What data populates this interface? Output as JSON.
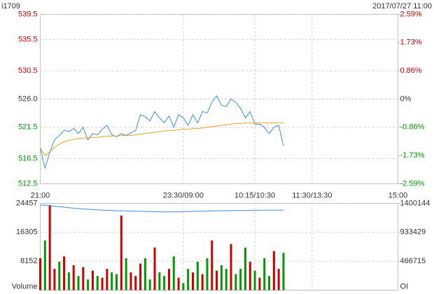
{
  "header": {
    "symbol": "i1709",
    "datetime": "2017/07/27 11:00"
  },
  "chart_data": [
    {
      "type": "line",
      "x": [
        0,
        5,
        10,
        15,
        20,
        25,
        30,
        35,
        40,
        45,
        50,
        55,
        60,
        65,
        70,
        75,
        80,
        85,
        90,
        95,
        100,
        105,
        110,
        115,
        120,
        125,
        130,
        135,
        140,
        145,
        150,
        155,
        160,
        165,
        170,
        175,
        180,
        185,
        190,
        195,
        200,
        205,
        210,
        215,
        220,
        225,
        230,
        235,
        240,
        245,
        250,
        255
      ],
      "series": [
        {
          "color": "#3a8ee6",
          "values": [
            518.2,
            515.0,
            517.5,
            519.5,
            520.2,
            521.0,
            520.8,
            521.3,
            520.5,
            521.5,
            519.5,
            520.5,
            520.3,
            521.2,
            521.8,
            520.3,
            520.0,
            520.5,
            520.2,
            520.6,
            521.0,
            523.5,
            523.2,
            522.5,
            524.0,
            523.0,
            522.2,
            523.3,
            521.5,
            523.5,
            523.0,
            521.8,
            523.5,
            522.2,
            524.0,
            523.8,
            525.5,
            526.5,
            525.0,
            524.8,
            526.0,
            525.5,
            524.5,
            523.0,
            524.0,
            522.0,
            522.0,
            521.5,
            520.5,
            521.5,
            521.8,
            518.5
          ]
        },
        {
          "color": "#f0a020",
          "values": [
            518.2,
            517.0,
            517.6,
            518.3,
            518.8,
            519.2,
            519.4,
            519.6,
            519.7,
            519.8,
            519.8,
            519.9,
            519.9,
            520.0,
            520.1,
            520.1,
            520.1,
            520.2,
            520.2,
            520.2,
            520.3,
            520.4,
            520.5,
            520.6,
            520.7,
            520.8,
            520.9,
            521.0,
            521.0,
            521.1,
            521.2,
            521.2,
            521.3,
            521.3,
            521.4,
            521.5,
            521.6,
            521.7,
            521.8,
            521.9,
            522.0,
            522.1,
            522.1,
            522.2,
            522.2,
            522.2,
            522.2,
            522.2,
            522.2,
            522.2,
            522.2,
            522.2
          ]
        }
      ],
      "xlim": [
        0,
        375
      ],
      "xticks": [
        {
          "value": 0,
          "label": "21:00"
        },
        {
          "value": 150,
          "label": "23:30/09:00"
        },
        {
          "value": 225,
          "label": "10:15/10:30"
        },
        {
          "value": 285,
          "label": "11:30/13:30"
        },
        {
          "value": 375,
          "label": "15:00"
        }
      ],
      "ylim": [
        512.5,
        539.5
      ],
      "yticks": [
        539.5,
        535.5,
        530.5,
        {
          "value": 526,
          "label": "526.0"
        },
        521.5,
        516.5,
        512.5
      ],
      "y2lim": [
        -2.59,
        2.59
      ],
      "y2ticks": [
        {
          "value": 2.59,
          "label": "2.59%"
        },
        {
          "value": 1.73,
          "label": "1.73%"
        },
        {
          "value": 0.86,
          "label": "0.86%"
        },
        {
          "value": 0,
          "label": "0%"
        },
        {
          "value": -0.86,
          "label": "-0.86%"
        },
        {
          "value": -1.73,
          "label": "-1.73%"
        },
        {
          "value": -2.59,
          "label": "-2.59%"
        }
      ],
      "grid": true
    },
    {
      "type": "bar",
      "x": [
        0,
        5,
        10,
        15,
        20,
        25,
        30,
        35,
        40,
        45,
        50,
        55,
        60,
        65,
        70,
        75,
        80,
        85,
        90,
        95,
        100,
        105,
        110,
        115,
        120,
        125,
        130,
        135,
        140,
        145,
        150,
        155,
        160,
        165,
        170,
        175,
        180,
        185,
        190,
        195,
        200,
        205,
        210,
        215,
        220,
        225,
        230,
        235,
        240,
        245,
        250,
        255
      ],
      "series": [
        {
          "color": "#cc0000",
          "values": [
            9000,
            14000,
            24000,
            6000,
            8000,
            9500,
            5000,
            7000,
            4000,
            6500,
            3000,
            5500,
            4000,
            3500,
            6000,
            5000,
            4500,
            21000,
            9000,
            5000,
            4000,
            7500,
            9000,
            3000,
            12000,
            5000,
            4000,
            6000,
            9500,
            3500,
            2000,
            6000,
            5000,
            8000,
            4500,
            9000,
            14000,
            5500,
            7000,
            6000,
            13000,
            4500,
            6000,
            12000,
            8000,
            5500,
            3500,
            9000,
            4000,
            11000,
            6000,
            10500
          ],
          "colors": [
            "#cc0000",
            "#009900",
            "#cc0000",
            "#cc0000",
            "#009900",
            "#cc0000",
            "#009900",
            "#cc0000",
            "#009900",
            "#cc0000",
            "#009900",
            "#cc0000",
            "#009900",
            "#cc0000",
            "#cc0000",
            "#009900",
            "#009900",
            "#cc0000",
            "#009900",
            "#cc0000",
            "#cc0000",
            "#cc0000",
            "#009900",
            "#009900",
            "#cc0000",
            "#009900",
            "#009900",
            "#cc0000",
            "#009900",
            "#cc0000",
            "#009900",
            "#009900",
            "#cc0000",
            "#009900",
            "#cc0000",
            "#009900",
            "#cc0000",
            "#cc0000",
            "#009900",
            "#009900",
            "#cc0000",
            "#009900",
            "#009900",
            "#009900",
            "#cc0000",
            "#009900",
            "#cc0000",
            "#009900",
            "#009900",
            "#cc0000",
            "#cc0000",
            "#009900"
          ]
        },
        {
          "type": "line",
          "axis": "y2",
          "color": "#3a8ee6",
          "values": [
            1375000,
            1368000,
            1360000,
            1352000,
            1345000,
            1338000,
            1330000,
            1322000,
            1315000,
            1310000,
            1305000,
            1300000,
            1296000,
            1292000,
            1288000,
            1285000,
            1282000,
            1280000,
            1278000,
            1276000,
            1274000,
            1272000,
            1270000,
            1268000,
            1266000,
            1264000,
            1262000,
            1262000,
            1263000,
            1264000,
            1266000,
            1268000,
            1270000,
            1272000,
            1274000,
            1276000,
            1278000,
            1280000,
            1281000,
            1282000,
            1283000,
            1284000,
            1285000,
            1286000,
            1287000,
            1288000,
            1288000,
            1289000,
            1290000,
            1290000,
            1291000,
            1292000
          ]
        }
      ],
      "xlim": [
        0,
        375
      ],
      "ylabel": "Volume",
      "y2label": "OI",
      "ylim": [
        0,
        24457
      ],
      "yticks": [
        8152,
        16305,
        24457
      ],
      "y2lim": [
        0,
        1400144
      ],
      "y2ticks": [
        466715,
        933429,
        1400144
      ],
      "grid": true
    }
  ]
}
